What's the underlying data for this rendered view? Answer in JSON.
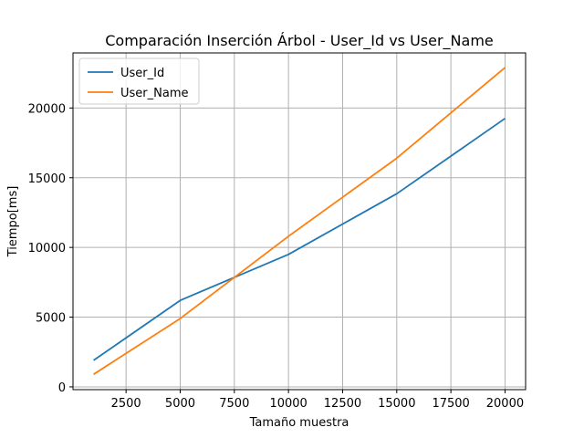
{
  "chart_data": {
    "type": "line",
    "title": "Comparación Inserción Árbol - User_Id vs User_Name",
    "xlabel": "Tamaño muestra",
    "ylabel": "Tiempo[ms]",
    "x": [
      1000,
      5000,
      10000,
      15000,
      20000
    ],
    "xlim": [
      50,
      20950
    ],
    "ylim": [
      -200,
      23950
    ],
    "xticks": [
      2500,
      5000,
      7500,
      10000,
      12500,
      15000,
      17500,
      20000
    ],
    "yticks": [
      0,
      5000,
      10000,
      15000,
      20000
    ],
    "grid": true,
    "legend_position": "upper left",
    "series": [
      {
        "name": "User_Id",
        "color": "#1f77b4",
        "values": [
          1900,
          6200,
          9500,
          13850,
          19250
        ]
      },
      {
        "name": "User_Name",
        "color": "#ff7f0e",
        "values": [
          900,
          4900,
          10800,
          16400,
          22900
        ]
      }
    ]
  }
}
